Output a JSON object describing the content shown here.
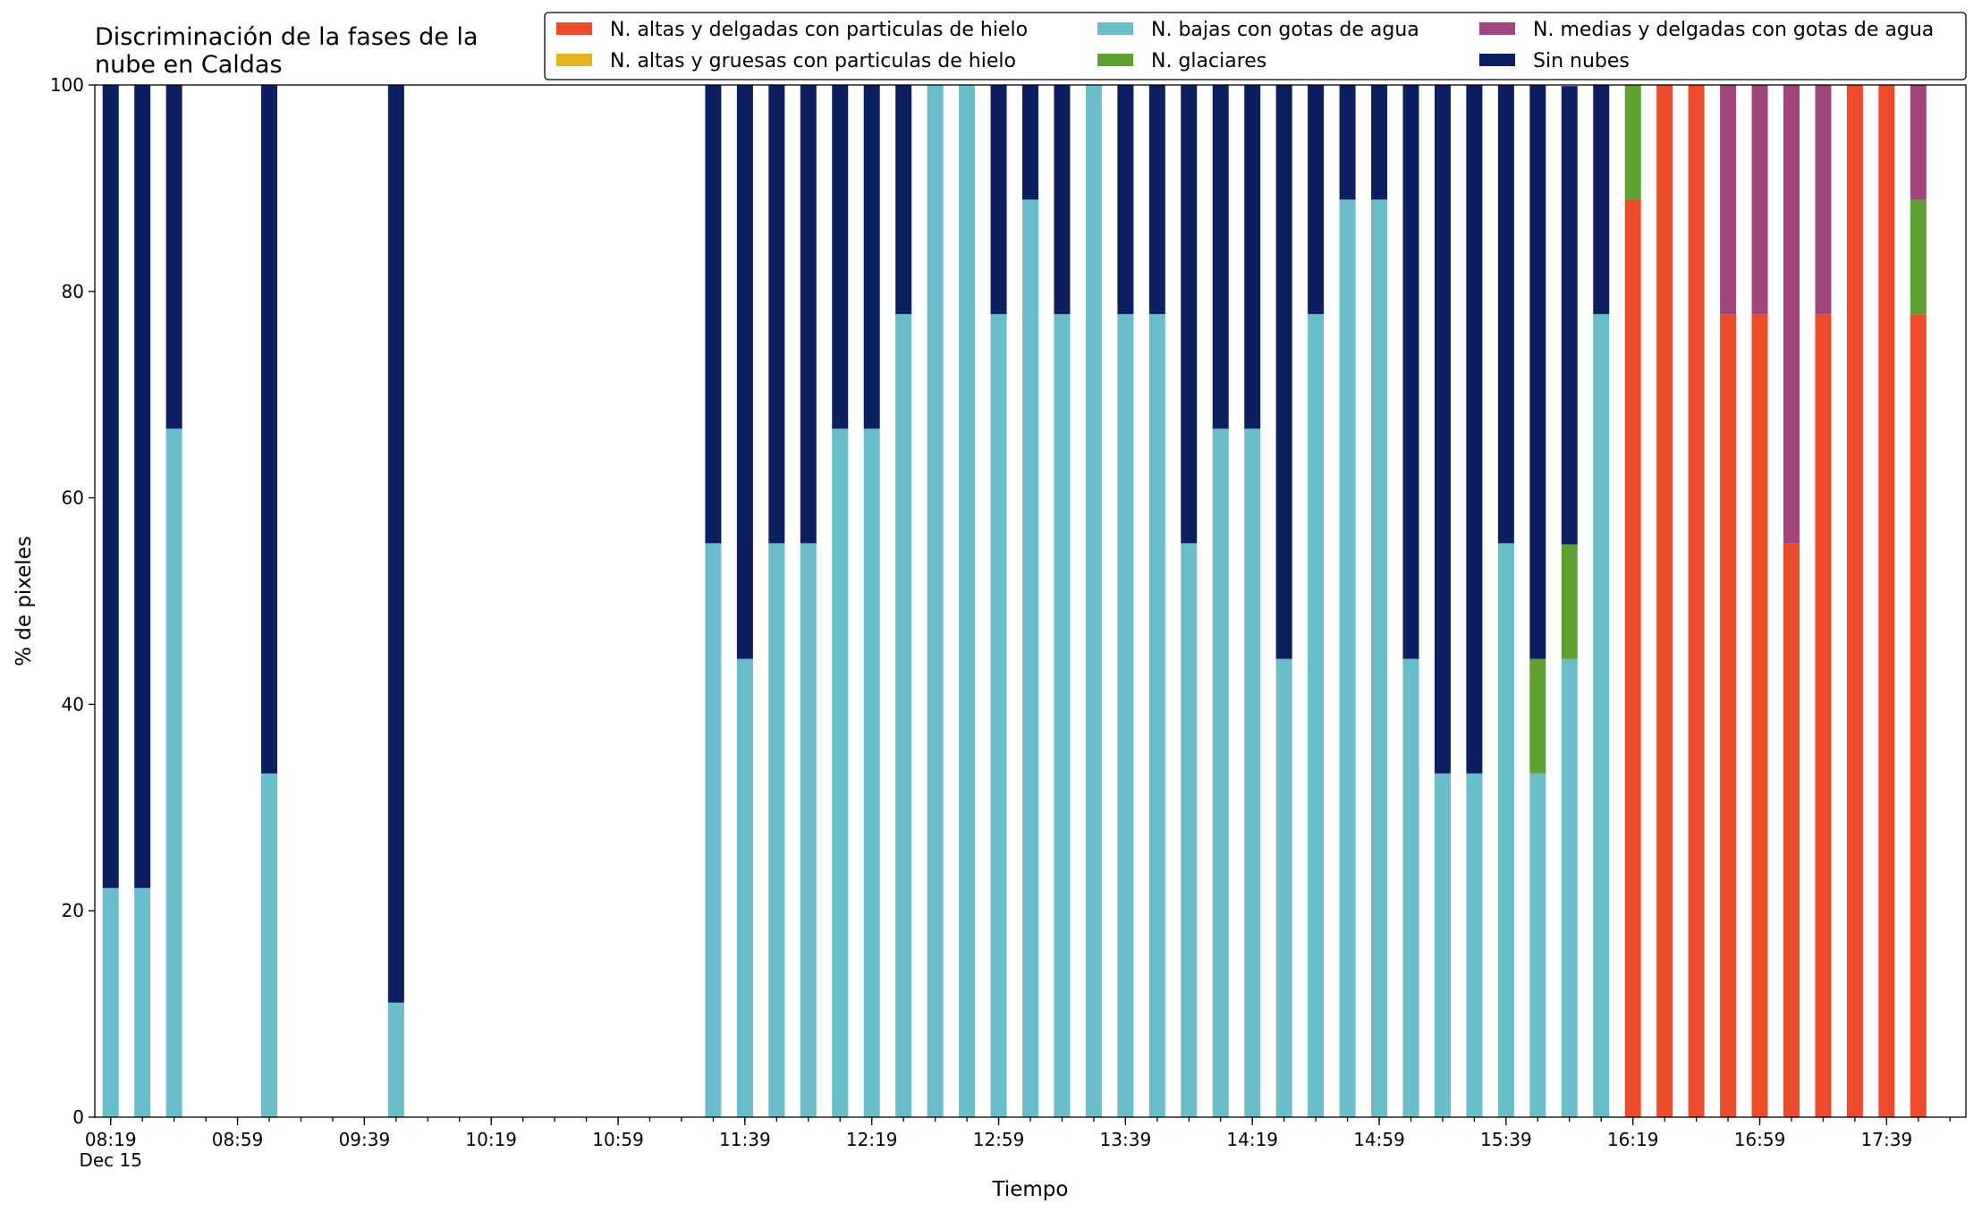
{
  "chart_data": {
    "type": "stacked_bar",
    "title": "Discriminación de la fases de la\nnube en Caldas",
    "xlabel": "Tiempo",
    "ylabel": "% de pixeles",
    "x": [
      "08:19",
      "08:29",
      "08:39",
      "09:09",
      "09:49",
      "11:29",
      "11:39",
      "11:49",
      "11:59",
      "12:09",
      "12:19",
      "12:29",
      "12:39",
      "12:49",
      "12:59",
      "13:09",
      "13:19",
      "13:29",
      "13:39",
      "13:49",
      "13:59",
      "14:09",
      "14:19",
      "14:29",
      "14:39",
      "14:49",
      "14:59",
      "15:09",
      "15:19",
      "15:29",
      "15:39",
      "15:49",
      "15:59",
      "16:09",
      "16:19",
      "16:29",
      "16:39",
      "16:49",
      "16:59",
      "17:09",
      "17:19",
      "17:29",
      "17:39",
      "17:49"
    ],
    "series": [
      {
        "name": "N. altas y delgadas con particulas de hielo",
        "color": "#ee4b2b",
        "values": [
          0,
          0,
          0,
          0,
          0,
          0,
          0,
          0,
          0,
          0,
          0,
          0,
          0,
          0,
          0,
          0,
          0,
          0,
          0,
          0,
          0,
          0,
          0,
          0,
          0,
          0,
          0,
          0,
          0,
          0,
          0,
          0,
          0,
          0,
          88.9,
          100,
          100,
          77.8,
          77.8,
          55.6,
          77.8,
          100,
          100,
          77.8
        ]
      },
      {
        "name": "N. altas y gruesas con particulas de hielo",
        "color": "#e6b51e",
        "values": [
          0,
          0,
          0,
          0,
          0,
          0,
          0,
          0,
          0,
          0,
          0,
          0,
          0,
          0,
          0,
          0,
          0,
          0,
          0,
          0,
          0,
          0,
          0,
          0,
          0,
          0,
          0,
          0,
          0,
          0,
          0,
          0,
          0,
          0,
          0,
          0,
          0,
          0,
          0,
          0,
          0,
          0,
          0,
          0
        ]
      },
      {
        "name": "N. bajas con gotas de agua",
        "color": "#68bfc9",
        "values": [
          22.2,
          22.2,
          66.7,
          33.3,
          11.1,
          55.6,
          44.4,
          55.6,
          55.6,
          66.7,
          66.7,
          77.8,
          100,
          100,
          77.8,
          88.9,
          77.8,
          100,
          77.8,
          77.8,
          55.6,
          66.7,
          66.7,
          44.4,
          77.8,
          88.9,
          88.9,
          44.4,
          33.3,
          33.3,
          55.6,
          33.3,
          44.4,
          77.8,
          0,
          0,
          0,
          0,
          0,
          0,
          0,
          0,
          0,
          0
        ]
      },
      {
        "name": "N. glaciares",
        "color": "#5da130",
        "values": [
          0,
          0,
          0,
          0,
          0,
          0,
          0,
          0,
          0,
          0,
          0,
          0,
          0,
          0,
          0,
          0,
          0,
          0,
          0,
          0,
          0,
          0,
          0,
          0,
          0,
          0,
          0,
          0,
          0,
          0,
          0,
          11.1,
          11.1,
          0,
          11.1,
          0,
          0,
          0,
          0,
          0,
          0,
          0,
          0,
          11.1
        ]
      },
      {
        "name": "N. medias y delgadas con gotas de agua",
        "color": "#a3457d",
        "values": [
          0,
          0,
          0,
          0,
          0,
          0,
          0,
          0,
          0,
          0,
          0,
          0,
          0,
          0,
          0,
          0,
          0,
          0,
          0,
          0,
          0,
          0,
          0,
          0,
          0,
          0,
          0,
          0,
          0,
          0,
          0,
          0,
          0,
          0,
          0,
          0,
          0,
          22.2,
          22.2,
          44.4,
          22.2,
          0,
          0,
          11.1
        ]
      },
      {
        "name": "Sin nubes",
        "color": "#0c2061",
        "values": [
          77.8,
          77.8,
          33.3,
          66.7,
          88.9,
          44.4,
          55.6,
          44.4,
          44.4,
          33.3,
          33.3,
          22.2,
          0,
          0,
          22.2,
          11.1,
          22.2,
          0,
          22.2,
          22.2,
          44.4,
          33.3,
          33.3,
          55.6,
          22.2,
          11.1,
          11.1,
          55.6,
          66.7,
          66.7,
          44.4,
          55.6,
          44.4,
          22.2,
          0,
          0,
          0,
          0,
          0,
          0,
          0,
          0,
          0,
          0
        ]
      }
    ],
    "xlim": [
      "08:14",
      "18:04"
    ],
    "xticks": [
      {
        "value": "08:19",
        "label": "08:19\nDec 15"
      },
      "08:59",
      "09:39",
      "10:19",
      "10:59",
      "11:39",
      "12:19",
      "12:59",
      "13:39",
      "14:19",
      "14:59",
      "15:39",
      "16:19",
      "16:59",
      "17:39"
    ],
    "xminorticks": [
      "08:19",
      "08:29",
      "08:39",
      "08:49",
      "08:59",
      "09:09",
      "09:19",
      "09:29",
      "09:39",
      "09:49",
      "09:59",
      "10:09",
      "10:19",
      "10:29",
      "10:39",
      "10:49",
      "10:59",
      "11:09",
      "11:19",
      "11:29",
      "11:39",
      "11:49",
      "11:59",
      "12:09",
      "12:19",
      "12:29",
      "12:39",
      "12:49",
      "12:59",
      "13:09",
      "13:19",
      "13:29",
      "13:39",
      "13:49",
      "13:59",
      "14:09",
      "14:19",
      "14:29",
      "14:39",
      "14:49",
      "14:59",
      "15:09",
      "15:19",
      "15:29",
      "15:39",
      "15:49",
      "15:59",
      "16:09",
      "16:19",
      "16:29",
      "16:39",
      "16:49",
      "16:59",
      "17:09",
      "17:19",
      "17:29",
      "17:39",
      "17:49",
      "17:59"
    ],
    "ylim": [
      0,
      100
    ],
    "yticks": [
      0,
      20,
      40,
      60,
      80,
      100
    ],
    "legend": "upper right"
  }
}
